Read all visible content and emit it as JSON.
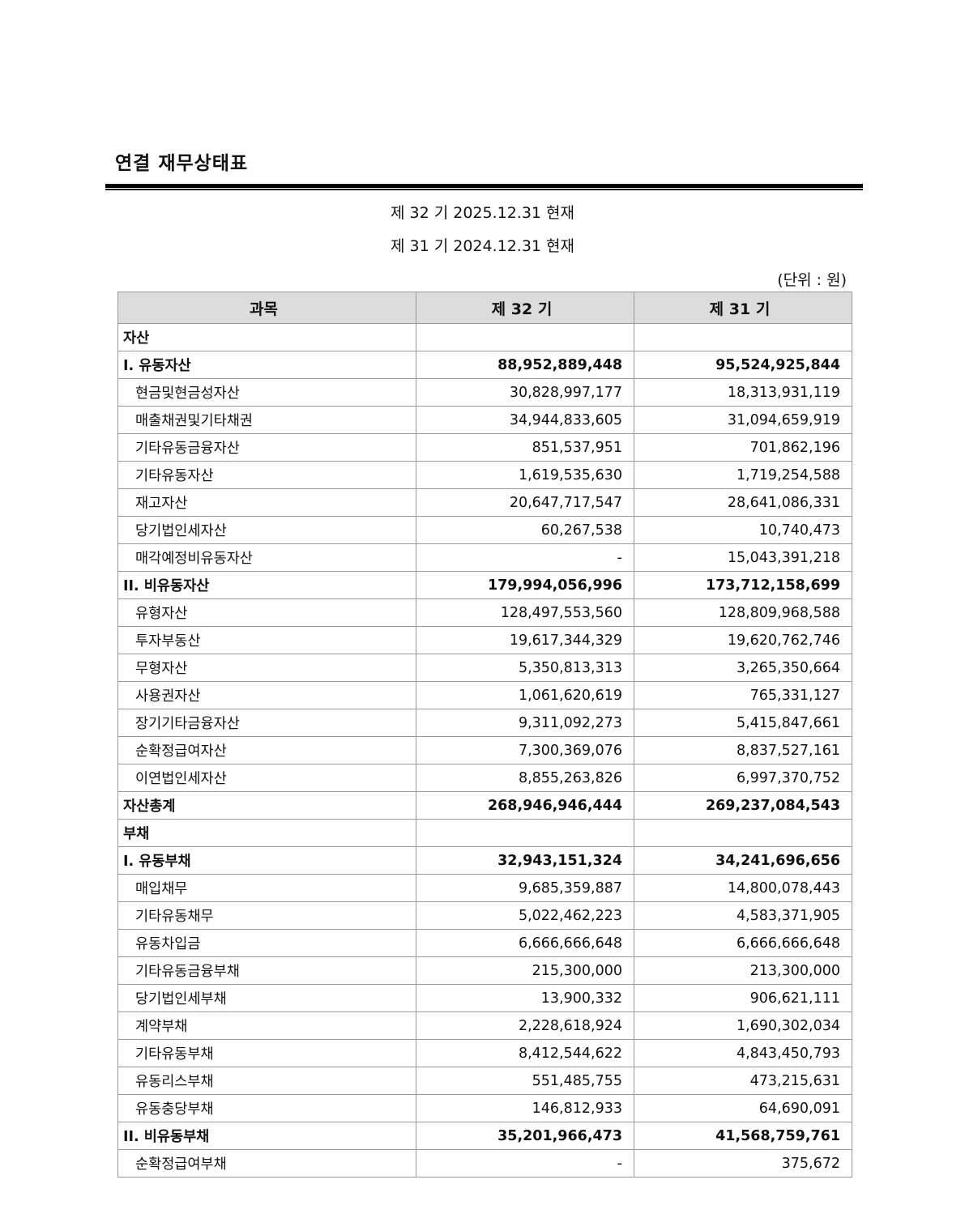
{
  "header": {
    "title": "연결 재무상태표",
    "periods": [
      "제 32 기 2025.12.31 현재",
      "제 31 기 2024.12.31 현재"
    ],
    "unit": "(단위 : 원)"
  },
  "table": {
    "columns": [
      "과목",
      "제 32 기",
      "제 31 기"
    ],
    "rows": [
      [
        "자산"
      ],
      [
        "I. 유동자산",
        "88,952,889,448",
        "95,524,925,844"
      ],
      [
        "현금및현금성자산",
        "30,828,997,177",
        "18,313,931,119"
      ],
      [
        "매출채권및기타채권",
        "34,944,833,605",
        "31,094,659,919"
      ],
      [
        "기타유동금융자산",
        "851,537,951",
        "701,862,196"
      ],
      [
        "기타유동자산",
        "1,619,535,630",
        "1,719,254,588"
      ],
      [
        "재고자산",
        "20,647,717,547",
        "28,641,086,331"
      ],
      [
        "당기법인세자산",
        "60,267,538",
        "10,740,473"
      ],
      [
        "매각예정비유동자산",
        "-",
        "15,043,391,218"
      ],
      [
        "II. 비유동자산",
        "179,994,056,996",
        "173,712,158,699"
      ],
      [
        "유형자산",
        "128,497,553,560",
        "128,809,968,588"
      ],
      [
        "투자부동산",
        "19,617,344,329",
        "19,620,762,746"
      ],
      [
        "무형자산",
        "5,350,813,313",
        "3,265,350,664"
      ],
      [
        "사용권자산",
        "1,061,620,619",
        "765,331,127"
      ],
      [
        "장기기타금융자산",
        "9,311,092,273",
        "5,415,847,661"
      ],
      [
        "순확정급여자산",
        "7,300,369,076",
        "8,837,527,161"
      ],
      [
        "이연법인세자산",
        "8,855,263,826",
        "6,997,370,752"
      ],
      [
        "자산총계",
        "268,946,946,444",
        "269,237,084,543"
      ],
      [
        "부채"
      ],
      [
        "I. 유동부채",
        "32,943,151,324",
        "34,241,696,656"
      ],
      [
        "매입채무",
        "9,685,359,887",
        "14,800,078,443"
      ],
      [
        "기타유동채무",
        "5,022,462,223",
        "4,583,371,905"
      ],
      [
        "유동차입금",
        "6,666,666,648",
        "6,666,666,648"
      ],
      [
        "기타유동금융부채",
        "215,300,000",
        "213,300,000"
      ],
      [
        "당기법인세부채",
        "13,900,332",
        "906,621,111"
      ],
      [
        "계약부채",
        "2,228,618,924",
        "1,690,302,034"
      ],
      [
        "기타유동부채",
        "8,412,544,622",
        "4,843,450,793"
      ],
      [
        "유동리스부채",
        "551,485,755",
        "473,215,631"
      ],
      [
        "유동충당부채",
        "146,812,933",
        "64,690,091"
      ],
      [
        "II. 비유동부채",
        "35,201,966,473",
        "41,568,759,761"
      ],
      [
        "순확정급여부채",
        "-",
        "375,672"
      ]
    ]
  }
}
